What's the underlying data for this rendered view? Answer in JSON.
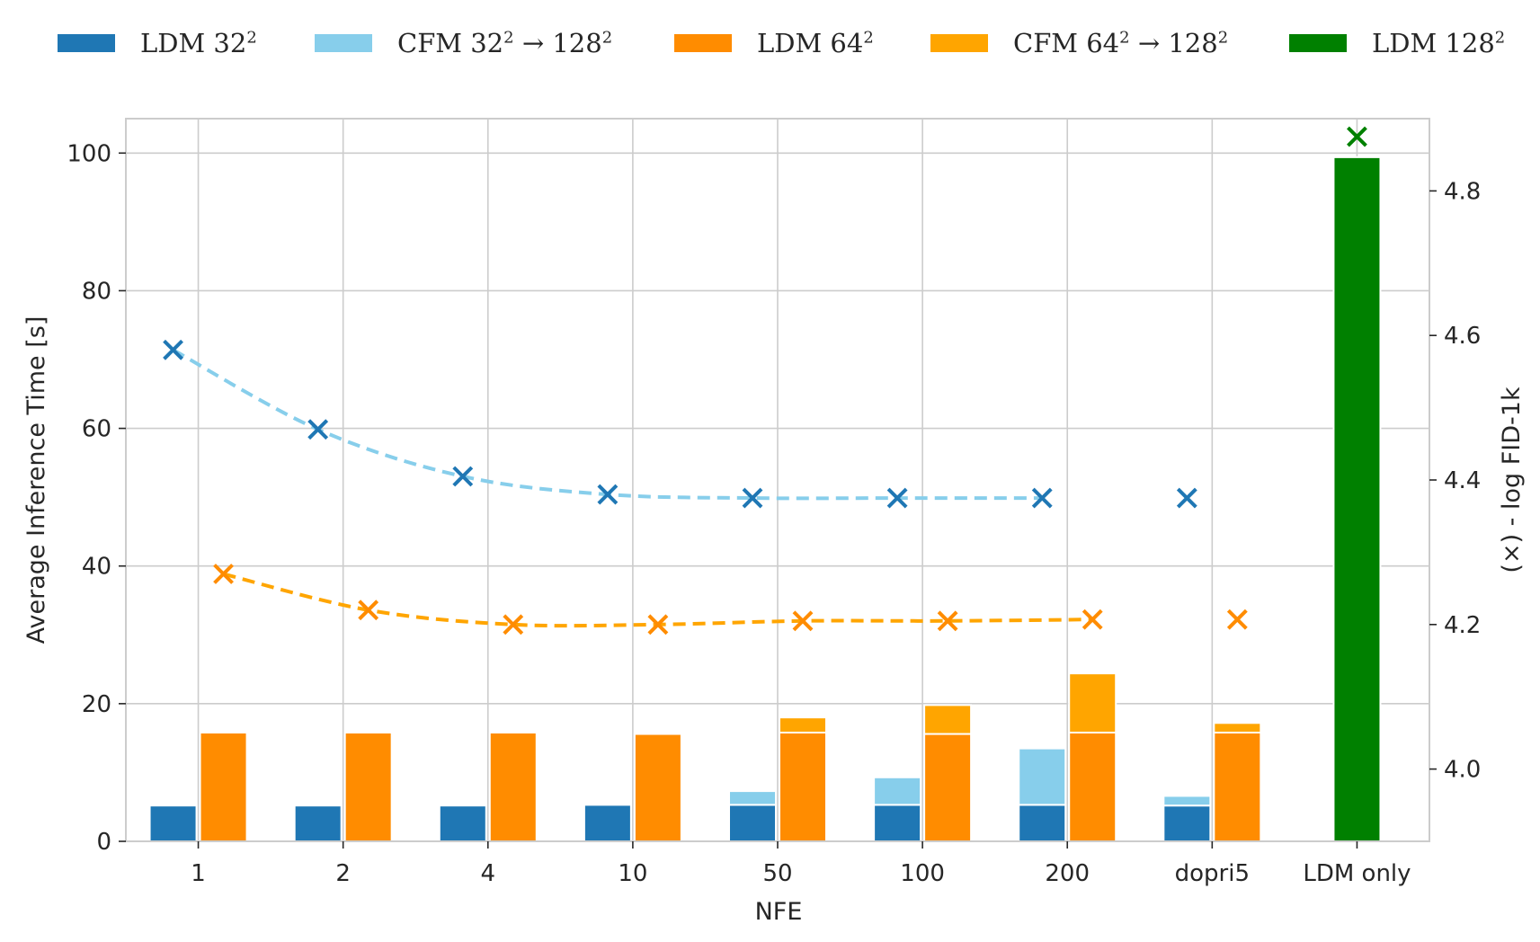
{
  "legend": {
    "items": [
      {
        "prefix": "LDM",
        "base": "32",
        "sup": "2",
        "arrow": "",
        "target_base": "",
        "target_sup": "",
        "color": "#1f77b4"
      },
      {
        "prefix": "CFM",
        "base": "32",
        "sup": "2",
        "arrow": "→",
        "target_base": "128",
        "target_sup": "2",
        "color": "#87ceeb"
      },
      {
        "prefix": "LDM",
        "base": "64",
        "sup": "2",
        "arrow": "",
        "target_base": "",
        "target_sup": "",
        "color": "#ff8c00"
      },
      {
        "prefix": "CFM",
        "base": "64",
        "sup": "2",
        "arrow": "→",
        "target_base": "128",
        "target_sup": "2",
        "color": "#ffa500"
      },
      {
        "prefix": "LDM",
        "base": "128",
        "sup": "2",
        "arrow": "",
        "target_base": "",
        "target_sup": "",
        "color": "#008000"
      }
    ]
  },
  "chart_data": {
    "type": "bar",
    "title": "",
    "xlabel": "NFE",
    "ylabel": "Average Inference Time [s]",
    "y2label": "(×) - log FID-1k",
    "ylim": [
      0,
      105
    ],
    "y2lim": [
      3.9,
      4.9
    ],
    "yticks": [
      "0",
      "20",
      "40",
      "60",
      "80",
      "100"
    ],
    "y2ticks": [
      "4.0",
      "4.2",
      "4.4",
      "4.6",
      "4.8"
    ],
    "categories": [
      "1",
      "2",
      "4",
      "10",
      "50",
      "100",
      "200",
      "dopri5",
      "LDM only"
    ],
    "stacks": [
      {
        "name": "LDM 32² + CFM 32²→128²",
        "segments": [
          {
            "name": "LDM 32²",
            "color": "#1f77b4",
            "values": [
              5.2,
              5.2,
              5.2,
              5.3,
              5.3,
              5.3,
              5.3,
              5.2,
              null
            ]
          },
          {
            "name": "CFM 32²→128²",
            "color": "#87ceeb",
            "values": [
              0,
              0,
              0,
              0,
              2.0,
              4.0,
              8.2,
              1.4,
              null
            ]
          }
        ]
      },
      {
        "name": "LDM 64² + CFM 64²→128²",
        "segments": [
          {
            "name": "LDM 64²",
            "color": "#ff8c00",
            "values": [
              15.8,
              15.8,
              15.8,
              15.6,
              15.8,
              15.6,
              15.8,
              15.8,
              null
            ]
          },
          {
            "name": "CFM 64²→128²",
            "color": "#ffa500",
            "values": [
              0,
              0,
              0,
              0,
              2.2,
              4.2,
              8.6,
              1.4,
              null
            ]
          }
        ]
      },
      {
        "name": "LDM 128²",
        "segments": [
          {
            "name": "LDM 128²",
            "color": "#008000",
            "values": [
              null,
              null,
              null,
              null,
              null,
              null,
              null,
              null,
              99.4
            ]
          }
        ]
      }
    ],
    "fid_series": [
      {
        "name": "CFM 32²→128²",
        "marker_color": "#1f77b4",
        "line_color": "#87ceeb",
        "values": [
          4.58,
          4.47,
          4.405,
          4.38,
          4.375,
          4.375,
          4.375,
          4.375,
          null
        ],
        "line_points": 7
      },
      {
        "name": "CFM 64²→128²",
        "marker_color": "#ff8c00",
        "line_color": "#ffa500",
        "values": [
          4.27,
          4.22,
          4.2,
          4.2,
          4.205,
          4.205,
          4.207,
          4.207,
          null
        ],
        "line_points": 7
      },
      {
        "name": "LDM 128²",
        "marker_color": "#008000",
        "line_color": "",
        "values": [
          null,
          null,
          null,
          null,
          null,
          null,
          null,
          null,
          4.875
        ],
        "line_points": 0
      }
    ],
    "grid": true
  }
}
